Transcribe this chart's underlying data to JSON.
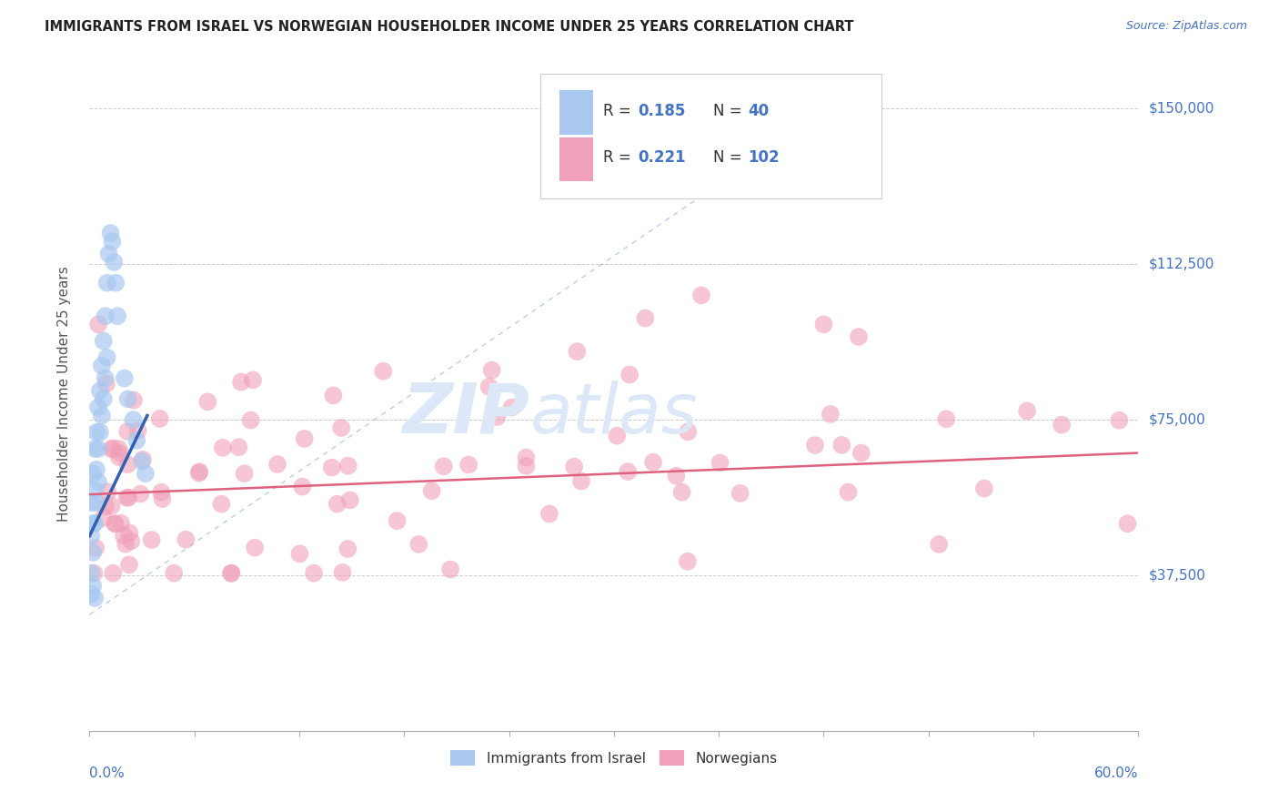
{
  "title": "IMMIGRANTS FROM ISRAEL VS NORWEGIAN HOUSEHOLDER INCOME UNDER 25 YEARS CORRELATION CHART",
  "source": "Source: ZipAtlas.com",
  "ylabel": "Householder Income Under 25 years",
  "xlim": [
    0.0,
    0.6
  ],
  "ylim": [
    0,
    162500
  ],
  "y_ticks": [
    0,
    37500,
    75000,
    112500,
    150000
  ],
  "y_tick_labels": [
    "",
    "$37,500",
    "$75,000",
    "$112,500",
    "$150,000"
  ],
  "legend_israel_R": "0.185",
  "legend_israel_N": "40",
  "legend_norwegians_R": "0.221",
  "legend_norwegians_N": "102",
  "color_israel": "#a8c8f0",
  "color_norwegians": "#f0a0b8",
  "color_blue_text": "#4472c4",
  "color_pink_text": "#d04070",
  "color_grid": "#c8c8c8",
  "background_color": "#ffffff",
  "watermark_color": "#dce8f8"
}
